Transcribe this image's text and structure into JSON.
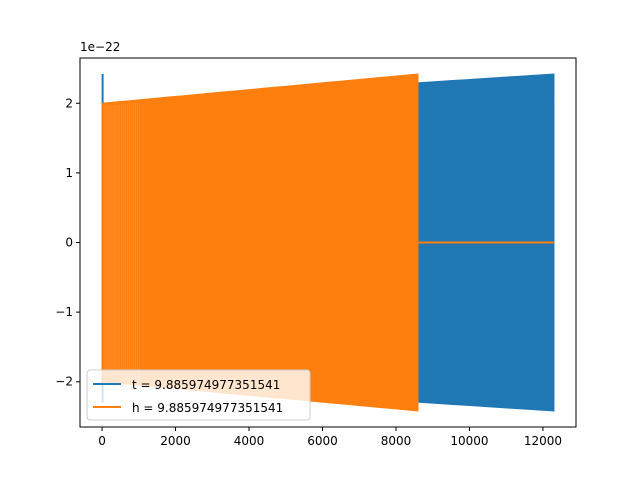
{
  "chart_data": {
    "type": "line",
    "title": "",
    "xlabel": "",
    "ylabel": "",
    "offset_text": "1e−22",
    "xlim": [
      -600,
      12900
    ],
    "ylim": [
      -2.65,
      2.65
    ],
    "xticks": [
      0,
      2000,
      4000,
      6000,
      8000,
      10000,
      12000
    ],
    "xtick_labels": [
      "0",
      "2000",
      "4000",
      "6000",
      "8000",
      "10000",
      "12000"
    ],
    "yticks": [
      -2,
      -1,
      0,
      1,
      2
    ],
    "ytick_labels": [
      "−2",
      "−1",
      "0",
      "1",
      "2"
    ],
    "grid": false,
    "legend_position": "lower-left",
    "series": [
      {
        "name": "t = 9.885974977351541",
        "color": "#1f77b4",
        "x_range": [
          0,
          12300
        ],
        "envelope_start": [
          -2.3,
          2.42
        ],
        "envelope_start_after_spike": [
          -2.0,
          2.0
        ],
        "envelope_end": [
          -2.42,
          2.42
        ],
        "trailing_value": null
      },
      {
        "name": "h = 9.885974977351541",
        "color": "#ff7f0e",
        "x_range": [
          0,
          8600
        ],
        "envelope_start": [
          -2.0,
          2.0
        ],
        "envelope_end": [
          -2.42,
          2.42
        ],
        "trailing_value": 0,
        "trailing_range": [
          8600,
          12300
        ]
      }
    ]
  }
}
